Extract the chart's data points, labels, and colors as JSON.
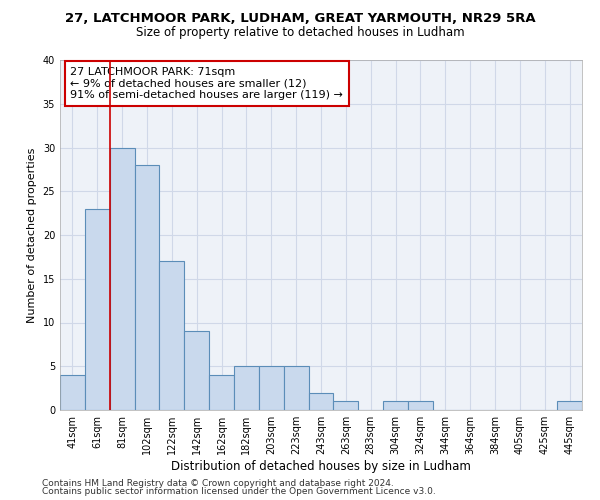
{
  "title1": "27, LATCHMOOR PARK, LUDHAM, GREAT YARMOUTH, NR29 5RA",
  "title2": "Size of property relative to detached houses in Ludham",
  "xlabel": "Distribution of detached houses by size in Ludham",
  "ylabel": "Number of detached properties",
  "categories": [
    "41sqm",
    "61sqm",
    "81sqm",
    "102sqm",
    "122sqm",
    "142sqm",
    "162sqm",
    "182sqm",
    "203sqm",
    "223sqm",
    "243sqm",
    "263sqm",
    "283sqm",
    "304sqm",
    "324sqm",
    "344sqm",
    "364sqm",
    "384sqm",
    "405sqm",
    "425sqm",
    "445sqm"
  ],
  "values": [
    4,
    23,
    30,
    28,
    17,
    9,
    4,
    5,
    5,
    5,
    2,
    1,
    0,
    1,
    1,
    0,
    0,
    0,
    0,
    0,
    1
  ],
  "bar_color": "#c9d9ed",
  "bar_edge_color": "#5b8db8",
  "bar_linewidth": 0.8,
  "red_line_x": 1.5,
  "annotation_line1": "27 LATCHMOOR PARK: 71sqm",
  "annotation_line2": "← 9% of detached houses are smaller (12)",
  "annotation_line3": "91% of semi-detached houses are larger (119) →",
  "annotation_box_color": "#ffffff",
  "annotation_box_edge": "#cc0000",
  "ylim": [
    0,
    40
  ],
  "yticks": [
    0,
    5,
    10,
    15,
    20,
    25,
    30,
    35,
    40
  ],
  "grid_color": "#d0d8e8",
  "background_color": "#eef2f8",
  "footer1": "Contains HM Land Registry data © Crown copyright and database right 2024.",
  "footer2": "Contains public sector information licensed under the Open Government Licence v3.0.",
  "title1_fontsize": 9.5,
  "title2_fontsize": 8.5,
  "tick_fontsize": 7,
  "ylabel_fontsize": 8,
  "xlabel_fontsize": 8.5,
  "annotation_fontsize": 8,
  "footer_fontsize": 6.5
}
